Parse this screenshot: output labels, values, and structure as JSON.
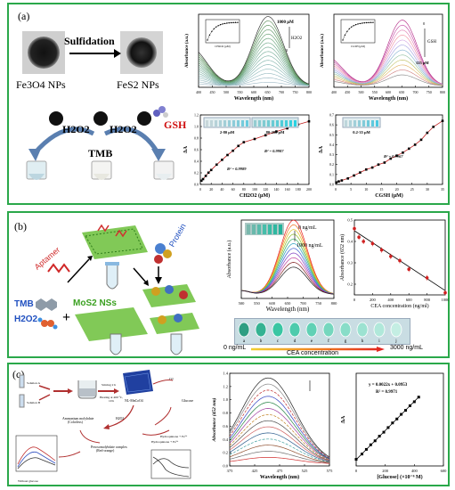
{
  "panel_a": {
    "label": "(a)",
    "fe3o4": "Fe3O4 NPs",
    "fes2": "FeS2 NPs",
    "sulfidation": "Sulfidation",
    "gsh": "GSH",
    "h2o2_left": "H2O2",
    "h2o2_right": "H2O2",
    "tmb": "TMB",
    "spec1": {
      "ylabel": "Absorbance (a.u.)",
      "xlabel": "Wavelength (nm)",
      "ann_top": "1000 μM",
      "ann_h2o2": "H2O2",
      "ann_bot": "0",
      "xticks": [
        "400",
        "450",
        "500",
        "550",
        "600",
        "650",
        "700",
        "750",
        "800"
      ],
      "inset_x": "CH2O2 (μM)"
    },
    "spec2": {
      "ylabel": "Absorbance (a.u.)",
      "xlabel": "Wavelength (nm)",
      "ann_top": "0",
      "ann_gsh": "GSH",
      "ann_bot": "125 μM",
      "xticks": [
        "400",
        "450",
        "500",
        "550",
        "600",
        "650",
        "700",
        "750",
        "800"
      ],
      "inset_x": "CGSH (μM)"
    },
    "cal1": {
      "ylabel": "ΔA",
      "xlabel": "CH2O2 (μM)",
      "range1": "2-80 μM",
      "range2": "80-200 μM",
      "r2a": "R² = 0.9987",
      "r2b": "R² = 0.9989",
      "xticks": [
        "0",
        "20",
        "40",
        "60",
        "80",
        "100",
        "120",
        "140",
        "160",
        "180",
        "200"
      ],
      "yticks": [
        "0.0",
        "0.2",
        "0.4",
        "0.6",
        "0.8",
        "1.0",
        "1.2"
      ]
    },
    "cal2": {
      "ylabel": "ΔA",
      "xlabel": "CGSH (μM)",
      "range": "0.2-35 μM",
      "r2": "R² = 0.9967",
      "xticks": [
        "0",
        "5",
        "10",
        "15",
        "20",
        "25",
        "30",
        "35"
      ],
      "yticks": [
        "0.0",
        "0.1",
        "0.2",
        "0.3",
        "0.4",
        "0.5",
        "0.6",
        "0.7"
      ]
    }
  },
  "panel_b": {
    "label": "(b)",
    "aptamer": "Aptamer",
    "protein": "Protein",
    "tmb": "TMB",
    "h2o2": "H2O2",
    "mos2": "MoS2 NSs",
    "spec": {
      "ylabel": "Absorbance (a.u.)",
      "xlabel": "Wavelength (nm)",
      "ann_top": "0 ng/mL",
      "ann_bot": "1000 ng/mL",
      "xticks": [
        "500",
        "550",
        "600",
        "650",
        "700",
        "750",
        "800"
      ]
    },
    "cea": {
      "ylabel": "Absorbance (652 nm)",
      "xlabel": "CEA concentration (ng/ml)",
      "xticks": [
        "0",
        "200",
        "400",
        "600",
        "800",
        "1000"
      ],
      "yticks": [
        "0.2",
        "0.3",
        "0.4",
        "0.5"
      ]
    },
    "vials": [
      "a",
      "b",
      "c",
      "d",
      "e",
      "f",
      "g",
      "h",
      "i",
      "j"
    ],
    "scale_left": "0 ng/mL",
    "scale_mid": "CEA concentration",
    "scale_right": "3000 ng/mL"
  },
  "panel_c": {
    "label": "(c)",
    "stirring": "Stirring 2 h",
    "heating": "Heating at 400 °C, 10 h",
    "nl": "NL-MnCoO4",
    "glucose": "Glucose",
    "o2": "O2",
    "h2o2": "H2O2",
    "ammonium": "Ammonium molybdate (Colorless)",
    "pmc": "Peroxomolybdate complex (Red-orange)",
    "without": "Without glucose",
    "spec": {
      "ylabel": "Absorbance (452 nm)",
      "xlabel": "Wavelength (nm)",
      "xticks": [
        "375",
        "425",
        "475",
        "525",
        "575"
      ],
      "yticks": [
        "0.0",
        "0.2",
        "0.4",
        "0.6",
        "0.8",
        "1.0",
        "1.2",
        "1.4"
      ]
    },
    "cal": {
      "ylabel": "ΔA",
      "xlabel": "[Glucose] (×10⁻⁶ M)",
      "eq": "y = 0.0022x + 0.0953",
      "r2": "R² = 0.9971",
      "xticks": [
        "0",
        "200",
        "400",
        "600"
      ]
    }
  },
  "chart_data": [
    {
      "type": "line",
      "id": "a-cal-h2o2",
      "x": [
        2,
        5,
        10,
        15,
        20,
        30,
        40,
        50,
        60,
        70,
        80,
        100,
        120,
        140,
        160,
        180,
        200
      ],
      "values": [
        0.07,
        0.1,
        0.16,
        0.22,
        0.27,
        0.37,
        0.46,
        0.55,
        0.63,
        0.72,
        0.79,
        0.85,
        0.92,
        0.99,
        1.05,
        1.12,
        1.18
      ],
      "xlim": [
        0,
        200
      ],
      "ylim": [
        0,
        1.3
      ]
    },
    {
      "type": "line",
      "id": "a-cal-gsh",
      "x": [
        0.2,
        1,
        2,
        4,
        6,
        8,
        10,
        12,
        14,
        16,
        18,
        20,
        22,
        24,
        26,
        28,
        30,
        32,
        35
      ],
      "values": [
        0.02,
        0.03,
        0.04,
        0.06,
        0.09,
        0.12,
        0.15,
        0.17,
        0.2,
        0.22,
        0.26,
        0.29,
        0.32,
        0.36,
        0.4,
        0.45,
        0.52,
        0.58,
        0.64
      ],
      "xlim": [
        0,
        35
      ],
      "ylim": [
        0,
        0.7
      ]
    },
    {
      "type": "scatter",
      "id": "b-cea",
      "x": [
        0,
        50,
        100,
        200,
        300,
        400,
        500,
        600,
        800,
        1000
      ],
      "values": [
        0.46,
        0.42,
        0.4,
        0.39,
        0.36,
        0.33,
        0.31,
        0.27,
        0.23,
        0.16
      ],
      "xlim": [
        0,
        1000
      ],
      "ylim": [
        0.15,
        0.5
      ]
    },
    {
      "type": "scatter",
      "id": "c-glucose",
      "x": [
        0,
        40,
        70,
        100,
        130,
        160,
        190,
        220,
        250,
        280,
        310,
        340,
        370,
        400,
        430
      ],
      "values": [
        0.1,
        0.18,
        0.25,
        0.32,
        0.38,
        0.45,
        0.51,
        0.58,
        0.65,
        0.71,
        0.78,
        0.84,
        0.91,
        0.97,
        1.04
      ],
      "xlim": [
        0,
        600
      ],
      "ylim": [
        0,
        1.4
      ]
    }
  ]
}
